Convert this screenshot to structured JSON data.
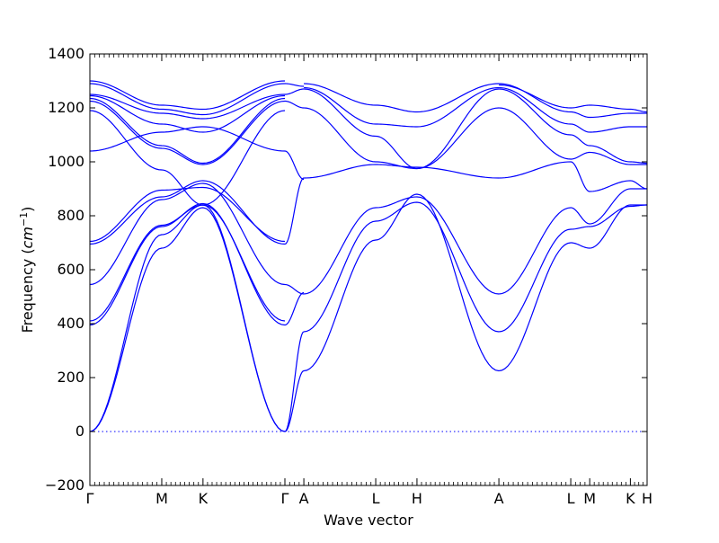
{
  "chart_data": {
    "type": "line",
    "title": "",
    "xlabel": "Wave vector",
    "ylabel_text": "Frequency (",
    "ylabel_unit": "cm",
    "ylabel_exp": "−1",
    "ylabel_close": ")",
    "ylim": [
      -200,
      1400
    ],
    "yticks": [
      -200,
      0,
      200,
      400,
      600,
      800,
      1000,
      1200,
      1400
    ],
    "x_range": [
      0,
      1
    ],
    "grid": false,
    "line_color": "#0000ff",
    "zero_line_color": "#0000ff",
    "high_symmetry_points": [
      {
        "label": "Γ",
        "x": 0.0
      },
      {
        "label": "M",
        "x": 0.129
      },
      {
        "label": "K",
        "x": 0.203
      },
      {
        "label": "Γ",
        "x": 0.35
      },
      {
        "label": "A",
        "x": 0.384
      },
      {
        "label": "L",
        "x": 0.513
      },
      {
        "label": "H",
        "x": 0.587
      },
      {
        "label": "A",
        "x": 0.734
      },
      {
        "label": "L",
        "x": 0.863
      },
      {
        "label": "M",
        "x": 0.897
      },
      {
        "label": "K",
        "x": 0.97
      },
      {
        "label": "H",
        "x": 1.0
      }
    ],
    "series": [
      {
        "x": [
          0,
          0.129,
          0.203,
          0.35
        ],
        "values": [
          0,
          680,
          830,
          0
        ]
      },
      {
        "x": [
          0,
          0.129,
          0.203,
          0.35
        ],
        "values": [
          0,
          730,
          840,
          0
        ]
      },
      {
        "x": [
          0,
          0.129,
          0.203,
          0.35
        ],
        "values": [
          395,
          760,
          845,
          395
        ]
      },
      {
        "x": [
          0,
          0.129,
          0.203,
          0.35
        ],
        "values": [
          410,
          765,
          840,
          410
        ]
      },
      {
        "x": [
          0,
          0.129,
          0.203,
          0.35
        ],
        "values": [
          545,
          860,
          920,
          545
        ]
      },
      {
        "x": [
          0,
          0.129,
          0.203,
          0.35
        ],
        "values": [
          695,
          870,
          930,
          695
        ]
      },
      {
        "x": [
          0,
          0.129,
          0.203,
          0.35
        ],
        "values": [
          705,
          895,
          905,
          705
        ]
      },
      {
        "x": [
          0,
          0.129,
          0.203,
          0.35
        ],
        "values": [
          1040,
          1110,
          1130,
          1040
        ]
      },
      {
        "x": [
          0,
          0.129,
          0.203,
          0.35
        ],
        "values": [
          1190,
          970,
          840,
          1190
        ]
      },
      {
        "x": [
          0,
          0.129,
          0.203,
          0.35
        ],
        "values": [
          1225,
          1050,
          990,
          1225
        ]
      },
      {
        "x": [
          0,
          0.129,
          0.203,
          0.35
        ],
        "values": [
          1235,
          1060,
          995,
          1235
        ]
      },
      {
        "x": [
          0,
          0.129,
          0.203,
          0.35
        ],
        "values": [
          1245,
          1140,
          1110,
          1245
        ]
      },
      {
        "x": [
          0,
          0.129,
          0.203,
          0.35
        ],
        "values": [
          1250,
          1180,
          1160,
          1250
        ]
      },
      {
        "x": [
          0,
          0.129,
          0.203,
          0.35
        ],
        "values": [
          1290,
          1195,
          1175,
          1290
        ]
      },
      {
        "x": [
          0,
          0.129,
          0.203,
          0.35
        ],
        "values": [
          1300,
          1210,
          1195,
          1300
        ]
      },
      {
        "x": [
          0.35,
          0.384
        ],
        "values": [
          0,
          225
        ]
      },
      {
        "x": [
          0.35,
          0.384
        ],
        "values": [
          0,
          370
        ]
      },
      {
        "x": [
          0.35,
          0.384
        ],
        "values": [
          395,
          515
        ]
      },
      {
        "x": [
          0.35,
          0.384
        ],
        "values": [
          545,
          510
        ]
      },
      {
        "x": [
          0.35,
          0.384
        ],
        "values": [
          695,
          940
        ]
      },
      {
        "x": [
          0.35,
          0.384
        ],
        "values": [
          1040,
          935
        ]
      },
      {
        "x": [
          0.35,
          0.384
        ],
        "values": [
          1225,
          1200
        ]
      },
      {
        "x": [
          0.35,
          0.384
        ],
        "values": [
          1250,
          1270
        ]
      },
      {
        "x": [
          0.35,
          0.384
        ],
        "values": [
          1290,
          1280
        ]
      },
      {
        "x": [
          0.384,
          0.513,
          0.587,
          0.734
        ],
        "values": [
          225,
          710,
          880,
          225
        ]
      },
      {
        "x": [
          0.384,
          0.513,
          0.587,
          0.734
        ],
        "values": [
          370,
          780,
          850,
          370
        ]
      },
      {
        "x": [
          0.384,
          0.513,
          0.587,
          0.734
        ],
        "values": [
          510,
          830,
          870,
          510
        ]
      },
      {
        "x": [
          0.384,
          0.513,
          0.587,
          0.734
        ],
        "values": [
          940,
          990,
          980,
          940
        ]
      },
      {
        "x": [
          0.384,
          0.513,
          0.587,
          0.734
        ],
        "values": [
          1200,
          1000,
          975,
          1200
        ]
      },
      {
        "x": [
          0.384,
          0.513,
          0.587,
          0.734
        ],
        "values": [
          1270,
          1095,
          975,
          1270
        ]
      },
      {
        "x": [
          0.384,
          0.513,
          0.587,
          0.734
        ],
        "values": [
          1275,
          1140,
          1130,
          1275
        ]
      },
      {
        "x": [
          0.384,
          0.513,
          0.587,
          0.734
        ],
        "values": [
          1290,
          1210,
          1185,
          1290
        ]
      },
      {
        "x": [
          0.734,
          0.863,
          0.897,
          0.97,
          1.0
        ],
        "values": [
          225,
          700,
          680,
          840,
          840
        ]
      },
      {
        "x": [
          0.734,
          0.863,
          0.897,
          0.97,
          1.0
        ],
        "values": [
          370,
          750,
          760,
          835,
          840
        ]
      },
      {
        "x": [
          0.734,
          0.863,
          0.897,
          0.97,
          1.0
        ],
        "values": [
          510,
          830,
          770,
          900,
          900
        ]
      },
      {
        "x": [
          0.734,
          0.863,
          0.897,
          0.97,
          1.0
        ],
        "values": [
          940,
          1000,
          890,
          930,
          900
        ]
      },
      {
        "x": [
          0.734,
          0.863,
          0.897,
          0.97,
          1.0
        ],
        "values": [
          1200,
          1010,
          1035,
          990,
          990
        ]
      },
      {
        "x": [
          0.734,
          0.863,
          0.897,
          0.97,
          1.0
        ],
        "values": [
          1270,
          1100,
          1060,
          1000,
          995
        ]
      },
      {
        "x": [
          0.734,
          0.863,
          0.897,
          0.97,
          1.0
        ],
        "values": [
          1275,
          1140,
          1110,
          1130,
          1130
        ]
      },
      {
        "x": [
          0.734,
          0.863,
          0.897,
          0.97,
          1.0
        ],
        "values": [
          1290,
          1185,
          1165,
          1180,
          1180
        ]
      },
      {
        "x": [
          0.734,
          0.863,
          0.897,
          0.97,
          1.0
        ],
        "values": [
          1285,
          1200,
          1210,
          1195,
          1185
        ]
      }
    ]
  }
}
